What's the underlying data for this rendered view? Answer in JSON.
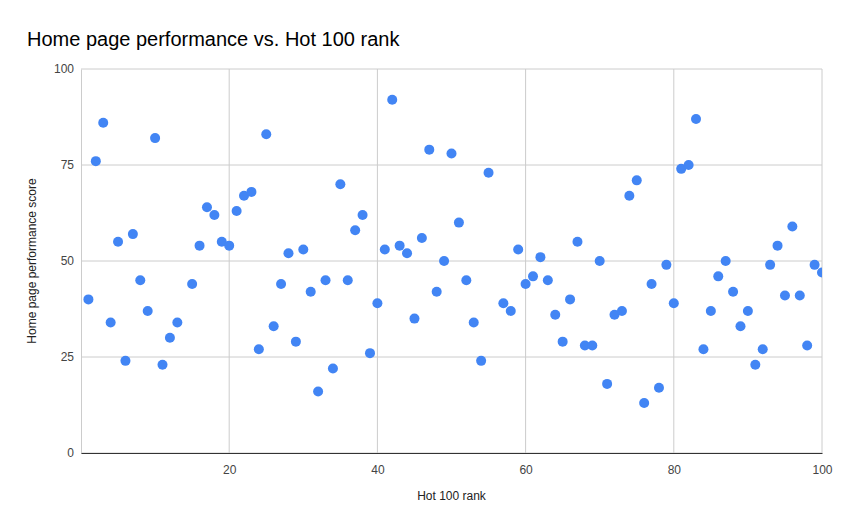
{
  "chart_data": {
    "type": "scatter",
    "title": "Home page performance vs. Hot 100 rank",
    "x_label": "Hot 100 rank",
    "y_label": "Home page performance score",
    "x": [
      1,
      2,
      3,
      4,
      5,
      6,
      7,
      8,
      9,
      10,
      11,
      12,
      13,
      15,
      16,
      17,
      18,
      19,
      20,
      21,
      22,
      23,
      24,
      25,
      26,
      27,
      28,
      29,
      30,
      31,
      32,
      33,
      34,
      35,
      36,
      37,
      38,
      39,
      40,
      41,
      42,
      43,
      44,
      45,
      46,
      47,
      48,
      49,
      50,
      51,
      52,
      53,
      54,
      55,
      57,
      58,
      59,
      60,
      61,
      62,
      63,
      64,
      65,
      66,
      67,
      68,
      69,
      70,
      71,
      72,
      73,
      74,
      75,
      76,
      77,
      78,
      79,
      80,
      81,
      82,
      83,
      84,
      85,
      86,
      87,
      88,
      89,
      90,
      91,
      92,
      93,
      94,
      95,
      96,
      97,
      98,
      99,
      100
    ],
    "values": [
      40,
      76,
      86,
      34,
      55,
      24,
      57,
      45,
      37,
      82,
      23,
      30,
      34,
      44,
      54,
      64,
      62,
      55,
      54,
      63,
      67,
      68,
      27,
      83,
      33,
      44,
      52,
      29,
      53,
      42,
      16,
      45,
      22,
      70,
      45,
      58,
      62,
      26,
      39,
      53,
      92,
      54,
      52,
      35,
      56,
      79,
      42,
      50,
      78,
      60,
      45,
      34,
      24,
      73,
      39,
      37,
      53,
      44,
      46,
      51,
      45,
      36,
      29,
      40,
      55,
      28,
      28,
      50,
      18,
      36,
      37,
      67,
      71,
      13,
      44,
      17,
      49,
      39,
      74,
      75,
      87,
      27,
      37,
      46,
      50,
      42,
      33,
      37,
      23,
      27,
      49,
      54,
      41,
      59,
      41,
      28,
      49,
      47
    ],
    "color": "#4285f4",
    "marker": "circle",
    "xlim": [
      0,
      100
    ],
    "xticks": [
      20,
      40,
      60,
      80,
      100
    ],
    "ylim": [
      0,
      100
    ],
    "yticks": [
      0,
      25,
      50,
      75,
      100
    ],
    "grid": true
  }
}
